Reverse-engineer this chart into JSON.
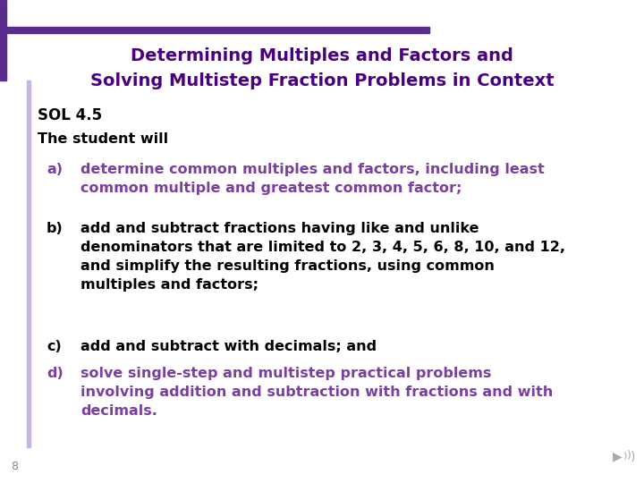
{
  "title_line1": "Determining Multiples and Factors and",
  "title_line2": "Solving Multistep Fraction Problems in Context",
  "title_color": "#4B0082",
  "sol_text": "SOL 4.5",
  "student_text": "The student will",
  "items": [
    {
      "label": "a)",
      "text": "determine common multiples and factors, including least\ncommon multiple and greatest common factor;",
      "color": "#7B3FA0",
      "label_color": "#7B3FA0"
    },
    {
      "label": "b)",
      "text": "add and subtract fractions having like and unlike\ndenominators that are limited to 2, 3, 4, 5, 6, 8, 10, and 12,\nand simplify the resulting fractions, using common\nmultiples and factors;",
      "color": "#000000",
      "label_color": "#000000"
    },
    {
      "label": "c)",
      "text": "add and subtract with decimals; and",
      "color": "#000000",
      "label_color": "#000000"
    },
    {
      "label": "d)",
      "text": "solve single-step and multistep practical problems\ninvolving addition and subtraction with fractions and with\ndecimals.",
      "color": "#7B3FA0",
      "label_color": "#7B3FA0"
    }
  ],
  "page_number": "8",
  "bg_color": "#FFFFFF",
  "accent_purple": "#5B2C8D",
  "black": "#000000",
  "title_fontsize": 14,
  "body_fontsize": 11.5,
  "sol_fontsize": 12
}
